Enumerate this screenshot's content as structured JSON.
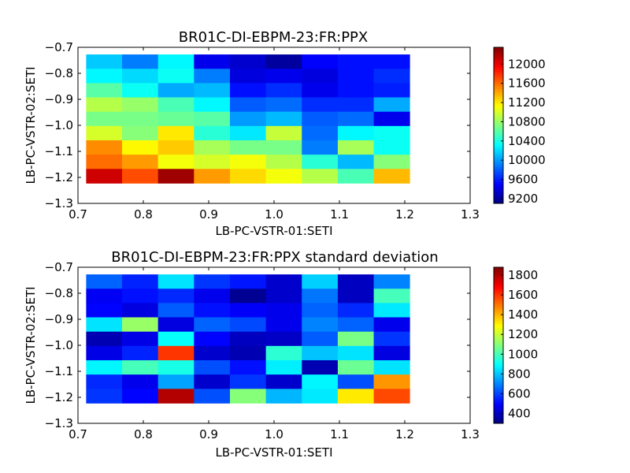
{
  "chart_data": [
    {
      "type": "heatmap",
      "title": "BR01C-DI-EBPM-23:FR:PPX",
      "xlabel": "LB-PC-VSTR-01:SETI",
      "ylabel": "LB-PC-VSTR-02:SETI",
      "xlim": [
        0.7,
        1.3
      ],
      "ylim": [
        -1.3,
        -0.7
      ],
      "xticks": [
        "0.7",
        "0.8",
        "0.9",
        "1.0",
        "1.1",
        "1.2",
        "1.3"
      ],
      "yticks": [
        "-1.3",
        "-1.2",
        "-1.1",
        "-1.0",
        "-0.9",
        "-0.8",
        "-0.7"
      ],
      "x_edges": [
        0.7125,
        0.7675,
        0.8225,
        0.8775,
        0.9325,
        0.9875,
        1.0425,
        1.0975,
        1.1525,
        1.2075
      ],
      "y_edges": [
        -0.7275,
        -0.7825,
        -0.8375,
        -0.8925,
        -0.9475,
        -1.0025,
        -1.0575,
        -1.1125,
        -1.1675,
        -1.2225
      ],
      "values": [
        [
          10150,
          9900,
          10300,
          9450,
          9350,
          9200,
          9500,
          9550,
          9550
        ],
        [
          10300,
          10200,
          10350,
          9900,
          9400,
          9450,
          9400,
          9550,
          9650
        ],
        [
          10600,
          10350,
          10050,
          10100,
          9550,
          9650,
          9450,
          9550,
          9600
        ],
        [
          10900,
          10800,
          10550,
          10300,
          9800,
          9850,
          9650,
          9650,
          10050
        ],
        [
          10700,
          10700,
          10650,
          10600,
          10000,
          10100,
          9800,
          9850,
          9450
        ],
        [
          11000,
          10750,
          11200,
          10450,
          10250,
          10950,
          9850,
          10300,
          10350
        ],
        [
          11500,
          11150,
          11300,
          10850,
          10700,
          10700,
          9900,
          10850,
          10350
        ],
        [
          11600,
          11450,
          11100,
          11000,
          11100,
          10900,
          10450,
          10100,
          10750
        ],
        [
          12100,
          11700,
          12250,
          11450,
          11250,
          11100,
          10900,
          10550,
          11350
        ]
      ],
      "colorbar": {
        "vmin": 9100,
        "vmax": 12350,
        "ticks": [
          9200,
          9600,
          10000,
          10400,
          10800,
          11200,
          11600,
          12000
        ]
      }
    },
    {
      "type": "heatmap",
      "title": "BR01C-DI-EBPM-23:FR:PPX standard deviation",
      "xlabel": "LB-PC-VSTR-01:SETI",
      "ylabel": "LB-PC-VSTR-02:SETI",
      "xlim": [
        0.7,
        1.3
      ],
      "ylim": [
        -1.3,
        -0.7
      ],
      "xticks": [
        "0.7",
        "0.8",
        "0.9",
        "1.0",
        "1.1",
        "1.2",
        "1.3"
      ],
      "yticks": [
        "-1.3",
        "-1.2",
        "-1.1",
        "-1.0",
        "-0.9",
        "-0.8",
        "-0.7"
      ],
      "x_edges": [
        0.7125,
        0.7675,
        0.8225,
        0.8775,
        0.9325,
        0.9875,
        1.0425,
        1.0975,
        1.1525,
        1.2075
      ],
      "y_edges": [
        -0.7275,
        -0.7825,
        -0.8375,
        -0.8925,
        -0.9475,
        -1.0025,
        -1.0575,
        -1.1125,
        -1.1675,
        -1.2225
      ],
      "values": [
        [
          650,
          550,
          850,
          580,
          530,
          420,
          820,
          400,
          700
        ],
        [
          480,
          520,
          560,
          470,
          330,
          420,
          680,
          400,
          1000
        ],
        [
          500,
          450,
          640,
          520,
          490,
          470,
          650,
          560,
          860
        ],
        [
          850,
          1130,
          450,
          650,
          610,
          470,
          700,
          650,
          470
        ],
        [
          380,
          460,
          900,
          500,
          400,
          410,
          640,
          1080,
          580
        ],
        [
          460,
          550,
          1600,
          420,
          380,
          960,
          800,
          850,
          450
        ],
        [
          880,
          1000,
          930,
          620,
          520,
          870,
          380,
          1060,
          850
        ],
        [
          560,
          470,
          750,
          420,
          580,
          420,
          880,
          620,
          1450
        ],
        [
          580,
          500,
          1800,
          620,
          1100,
          780,
          860,
          1320,
          1570
        ]
      ],
      "colorbar": {
        "vmin": 300,
        "vmax": 1880,
        "ticks": [
          400,
          600,
          800,
          1000,
          1200,
          1400,
          1600,
          1800
        ]
      }
    }
  ]
}
